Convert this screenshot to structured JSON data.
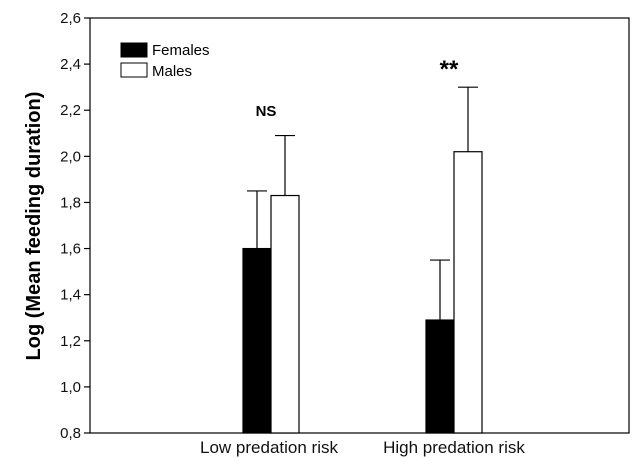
{
  "chart_data": {
    "type": "bar",
    "ylabel": "Log (Mean feeding duration)",
    "xlabel": "",
    "ylim": [
      0.8,
      2.6
    ],
    "yticks": [
      "0,8",
      "1,0",
      "1,2",
      "1,4",
      "1,6",
      "1,8",
      "2,0",
      "2,2",
      "2,4",
      "2,6"
    ],
    "categories": [
      "Low predation risk",
      "High predation risk"
    ],
    "series": [
      {
        "name": "Females",
        "color": "#000000",
        "values": [
          1.6,
          1.29
        ],
        "error": [
          0.25,
          0.26
        ]
      },
      {
        "name": "Males",
        "color": "#ffffff",
        "values": [
          1.83,
          2.02
        ],
        "error": [
          0.26,
          0.28
        ]
      }
    ],
    "annotations": [
      "NS",
      "**"
    ],
    "legend": "top-left",
    "grid": false
  }
}
